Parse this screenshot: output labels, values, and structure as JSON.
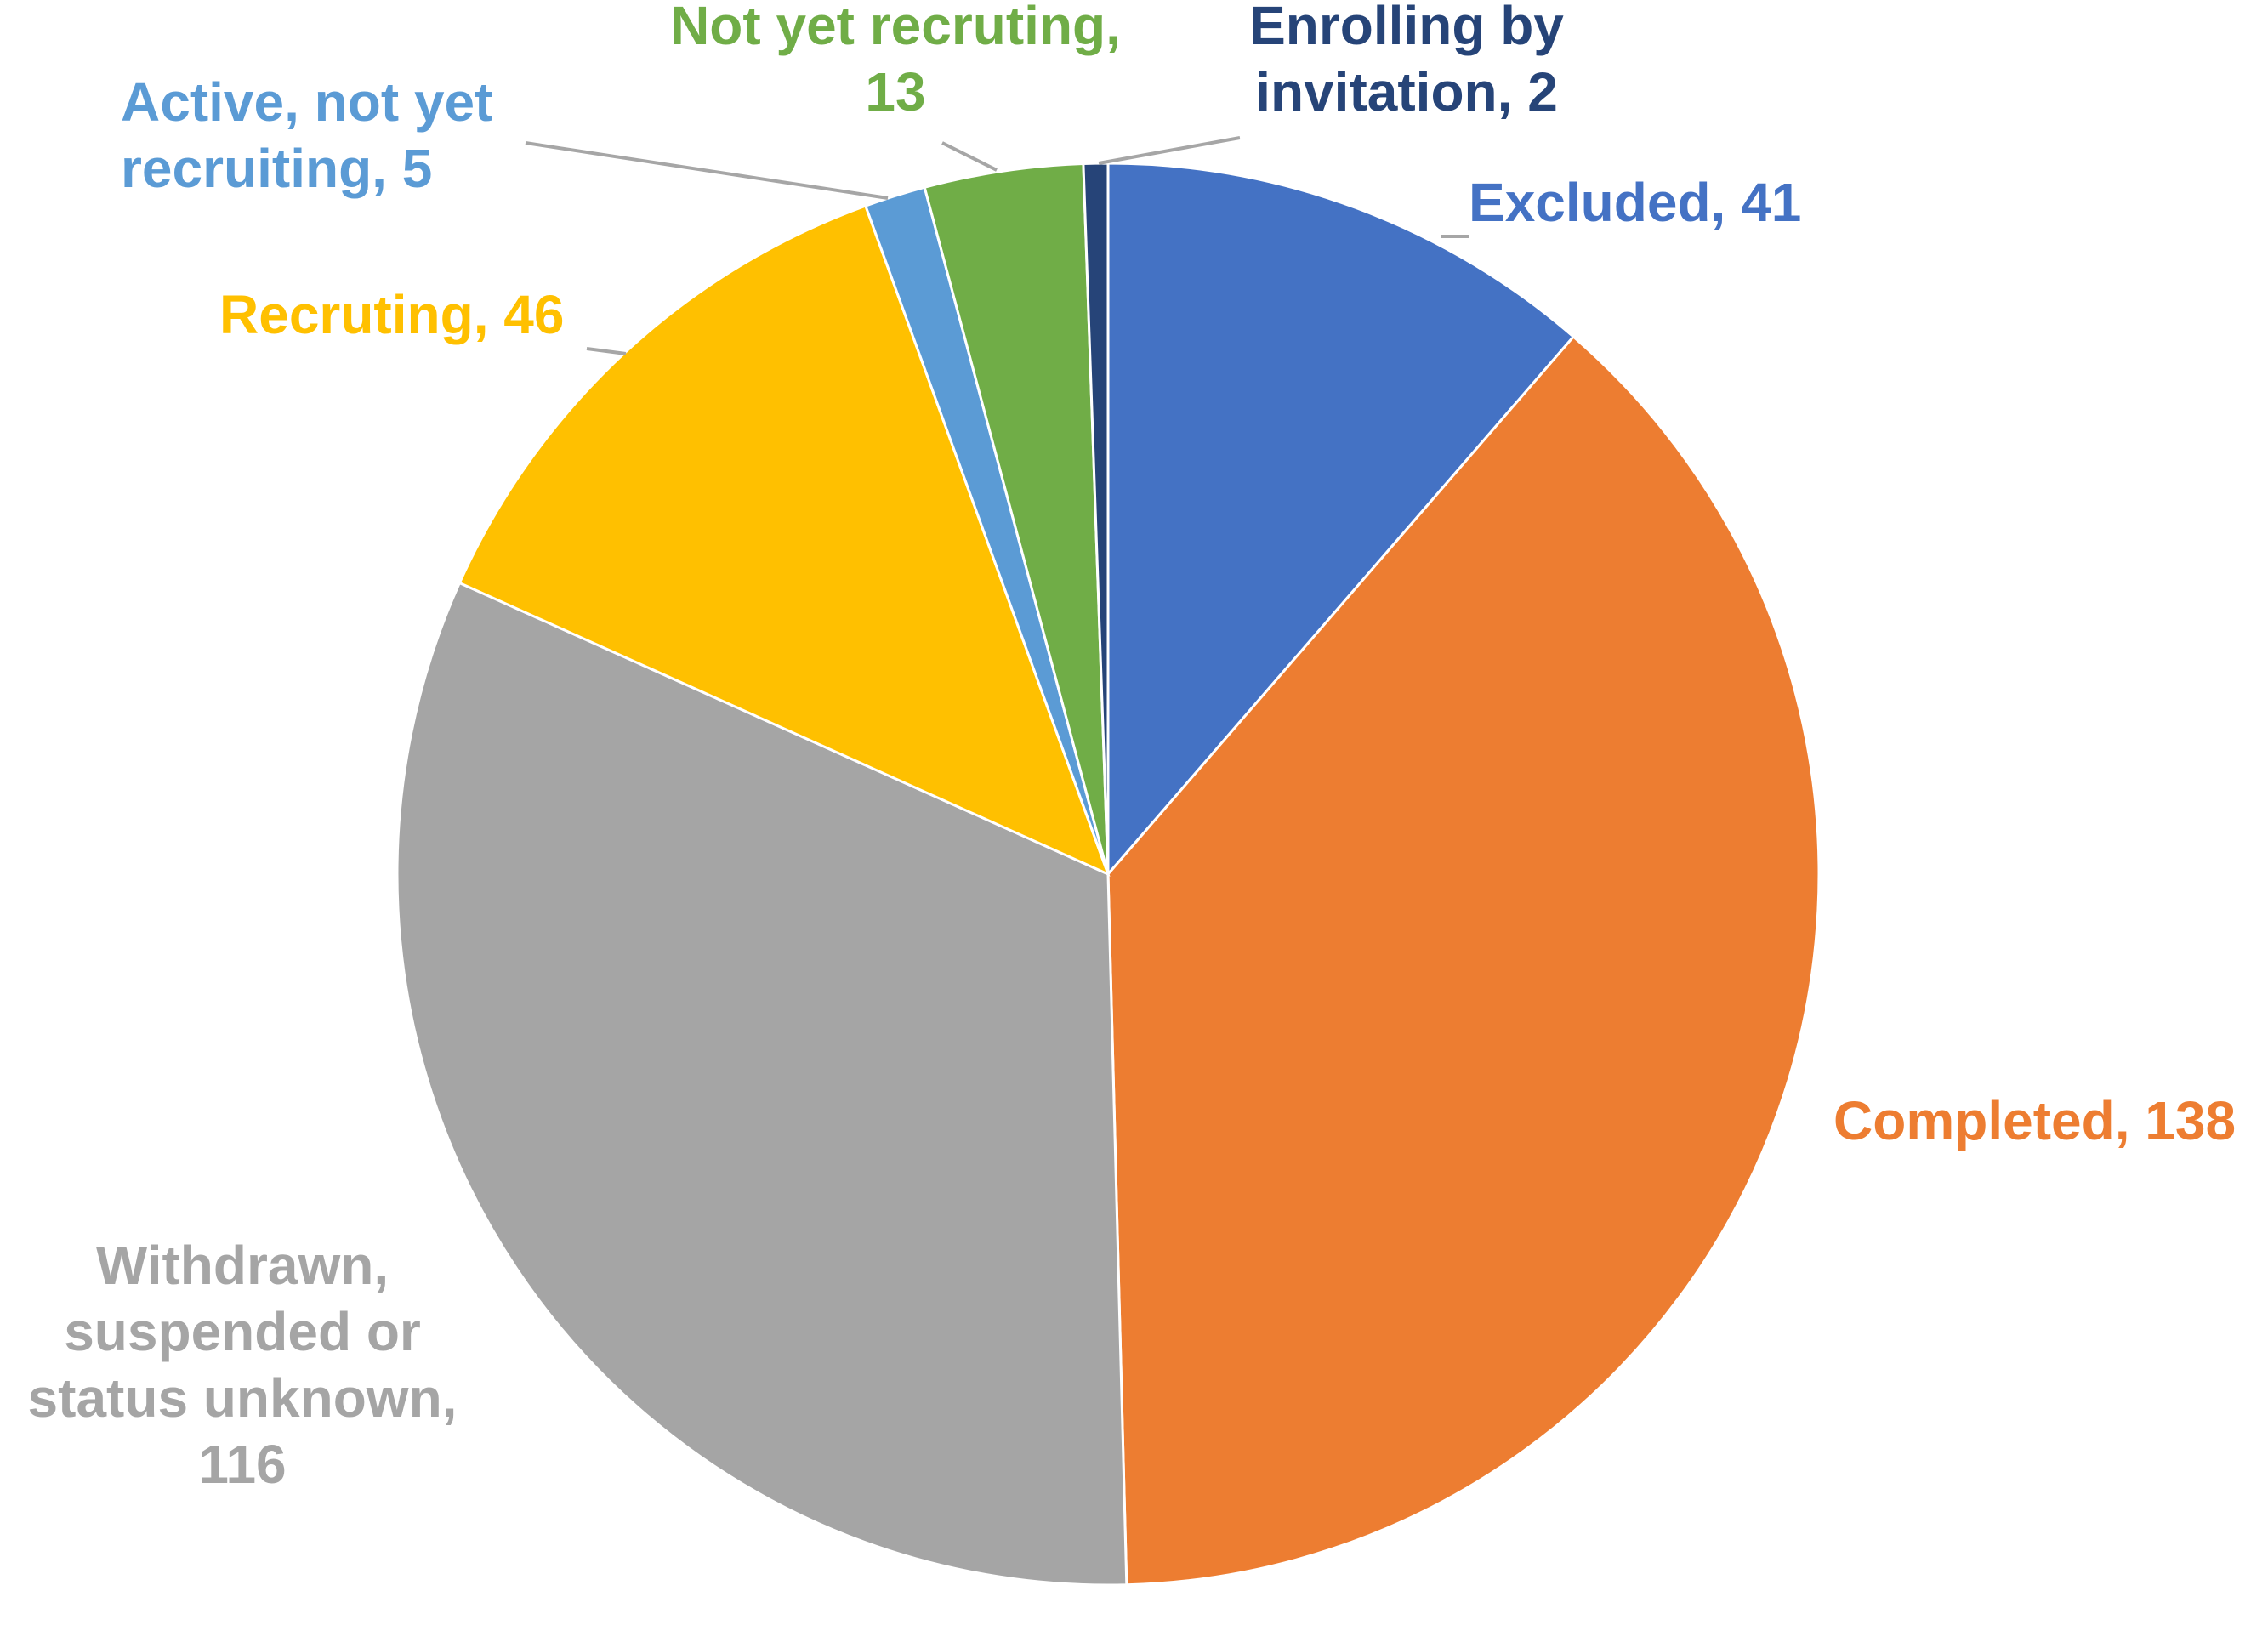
{
  "chart_data": {
    "type": "pie",
    "title": "",
    "slices": [
      {
        "label": "Excluded",
        "value": 41,
        "color": "#4472C4",
        "label_lines": [
          "Excluded, 41"
        ]
      },
      {
        "label": "Completed",
        "value": 138,
        "color": "#ED7D31",
        "label_lines": [
          "Completed, 138"
        ]
      },
      {
        "label": "Withdrawn, suspended or status unknown",
        "value": 116,
        "color": "#A5A5A5",
        "label_lines": [
          "Withdrawn,",
          "suspended or",
          "status unknown,",
          "116"
        ]
      },
      {
        "label": "Recruting",
        "value": 46,
        "color": "#FFC000",
        "label_lines": [
          "Recruting, 46"
        ]
      },
      {
        "label": "Active, not yet recruiting",
        "value": 5,
        "color": "#5B9BD5",
        "label_lines": [
          "Active, not yet",
          "recruiting, 5"
        ]
      },
      {
        "label": "Not yet recruting",
        "value": 13,
        "color": "#70AD47",
        "label_lines": [
          "Not yet recruting,",
          "13"
        ]
      },
      {
        "label": "Enrolling by invitation",
        "value": 2,
        "color": "#264478",
        "label_lines": [
          "Enrolling by",
          "invitation, 2"
        ]
      }
    ],
    "start_angle_deg": 0,
    "direction": "clockwise",
    "legend": "none",
    "data_labels": "category name and value"
  }
}
